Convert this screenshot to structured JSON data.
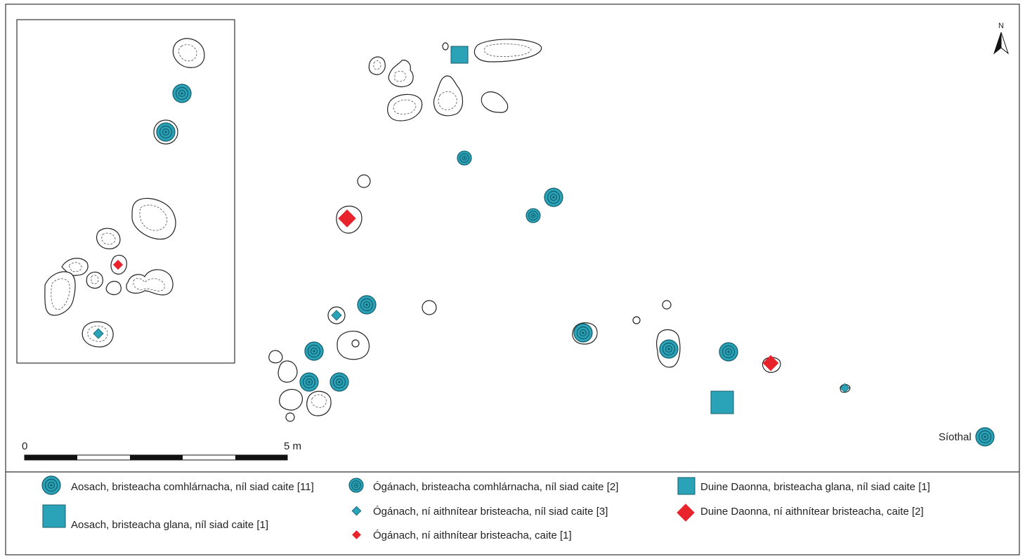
{
  "title": "",
  "colors": {
    "teal": "#2AA3B8",
    "teal_dark": "#135C6A",
    "red": "#E8232B",
    "outline": "#222222"
  },
  "north_label": "N",
  "scale_bar": {
    "start_label": "0",
    "end_label": "5 m",
    "length_m": 5
  },
  "siothal_label": "Síothal",
  "legend": [
    {
      "symbol": "concentric-circle",
      "label": "Aosach, bristeacha comhlárnacha, níl siad caite [11]"
    },
    {
      "symbol": "square",
      "label": "Aosach, bristeacha glana, níl siad caite [1]"
    },
    {
      "symbol": "concentric-circle-small",
      "label": "Ógánach, bristeacha comhlárnacha, níl siad caite [2]"
    },
    {
      "symbol": "diamond-teal-small",
      "label": "Ógánach, ní aithnítear bristeacha, níl siad caite [3]"
    },
    {
      "symbol": "diamond-red-small",
      "label": "Ógánach, ní aithnítear bristeacha, caite [1]"
    },
    {
      "symbol": "square-small",
      "label": "Duine Daonna, bristeacha glana, níl siad caite [1]"
    },
    {
      "symbol": "diamond-red",
      "label": "Duine Daonna, ní aithnítear bristeacha, caite [2]"
    }
  ]
}
